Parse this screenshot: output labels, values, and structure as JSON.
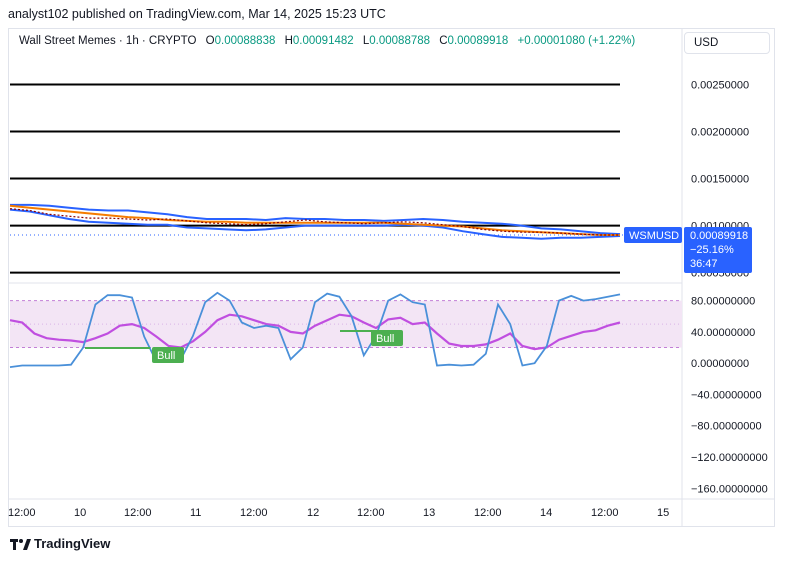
{
  "header": {
    "published": "analyst102 published on TradingView.com, Mar 14, 2025 15:23 UTC"
  },
  "legend": {
    "symbol": "Wall Street Memes · 1h · CRYPTO",
    "open_key": "O",
    "open": "0.00088838",
    "high_key": "H",
    "high": "0.00091482",
    "low_key": "L",
    "low": "0.00088788",
    "close_key": "C",
    "close": "0.00089918",
    "change": "+0.00001080 (+1.22%)"
  },
  "currency_button": "USD",
  "price_tag": {
    "ticker": "WSMUSD",
    "price": "0.00089918",
    "change": "−25.16%",
    "countdown": "36:47"
  },
  "signals": [
    {
      "label": "Bull"
    },
    {
      "label": "Bull"
    }
  ],
  "footer": {
    "brand": "TradingView"
  },
  "colors": {
    "bollinger": "#2962ff",
    "ma": "#f57c00",
    "stoch_k": "#4a90d9",
    "stoch_d": "#c04fe0",
    "bull": "#4caf50",
    "tag": "#2962ff",
    "stoch_band": "#f3e5f5"
  },
  "chart_data": [
    {
      "type": "line",
      "name": "price_panel",
      "yticks": [
        "0.00250000",
        "0.00200000",
        "0.00150000",
        "0.00100000",
        "0.00050000"
      ],
      "ylim": [
        0.00039,
        0.00276
      ],
      "xticks": [
        "12:00",
        "10",
        "12:00",
        "11",
        "12:00",
        "12",
        "12:00",
        "13",
        "12:00",
        "14",
        "12:00",
        "15"
      ],
      "horizontal_levels": [
        0.0025,
        0.002,
        0.0015,
        0.001,
        0.0005
      ],
      "series": [
        {
          "role": "price",
          "values": [
            0.00118,
            0.00116,
            0.00112,
            0.0011,
            0.00108,
            0.00108,
            0.00107,
            0.00106,
            0.00107,
            0.00105,
            0.00103,
            0.00102,
            0.00101,
            0.00102,
            0.00104,
            0.00106,
            0.00104,
            0.00103,
            0.00102,
            0.00103,
            0.00104,
            0.00103,
            0.00101,
            0.00099,
            0.00096,
            0.00094,
            0.00093,
            0.00093,
            0.00092,
            0.00091,
            0.0009,
            0.0009
          ]
        },
        {
          "role": "bollinger_upper",
          "values": [
            0.00122,
            0.00122,
            0.00121,
            0.00119,
            0.00117,
            0.00116,
            0.00116,
            0.00114,
            0.00112,
            0.00109,
            0.00107,
            0.00107,
            0.00107,
            0.00106,
            0.00108,
            0.00107,
            0.00107,
            0.00106,
            0.00106,
            0.00105,
            0.00106,
            0.00107,
            0.00106,
            0.00104,
            0.00103,
            0.00102,
            0.001,
            0.00097,
            0.00096,
            0.00094,
            0.00092,
            0.00091
          ]
        },
        {
          "role": "bollinger_lower",
          "values": [
            0.00117,
            0.00115,
            0.00111,
            0.00107,
            0.00104,
            0.00103,
            0.00102,
            0.00101,
            0.00101,
            0.00098,
            0.00097,
            0.00096,
            0.00095,
            0.00096,
            0.00098,
            0.001,
            0.001,
            0.001,
            0.001,
            0.001,
            0.00101,
            0.001,
            0.00098,
            0.00094,
            0.00091,
            0.00088,
            0.00087,
            0.00086,
            0.00087,
            0.00087,
            0.00088,
            0.00089
          ]
        },
        {
          "role": "moving_average",
          "values": [
            0.00121,
            0.00119,
            0.00117,
            0.00115,
            0.00113,
            0.00111,
            0.00109,
            0.00108,
            0.00106,
            0.00105,
            0.00104,
            0.00104,
            0.00103,
            0.00103,
            0.00103,
            0.00103,
            0.00103,
            0.00103,
            0.00103,
            0.00103,
            0.00102,
            0.00101,
            0.001,
            0.00099,
            0.00097,
            0.00095,
            0.00094,
            0.00093,
            0.00092,
            0.00091,
            0.0009,
            0.0009
          ]
        }
      ]
    },
    {
      "type": "line",
      "name": "stochastic_panel",
      "yticks": [
        "80.00000000",
        "40.00000000",
        "0.00000000",
        "−40.00000000",
        "−80.00000000",
        "−120.00000000",
        "−160.00000000"
      ],
      "ylim": [
        -175,
        100
      ],
      "band": [
        20,
        80
      ],
      "series": [
        {
          "role": "k",
          "values": [
            -5,
            -3,
            -3,
            -3,
            -3,
            -2,
            20,
            75,
            87,
            87,
            84,
            34,
            2,
            3,
            5,
            35,
            78,
            90,
            80,
            52,
            45,
            48,
            45,
            5,
            20,
            78,
            89,
            85,
            60,
            10,
            35,
            80,
            88,
            78,
            75,
            -3,
            -2,
            -3,
            -2,
            12,
            75,
            50,
            -3,
            0,
            22,
            80,
            86,
            80,
            82,
            85,
            88
          ]
        },
        {
          "role": "d",
          "values": [
            55,
            52,
            38,
            32,
            30,
            29,
            27,
            32,
            38,
            48,
            50,
            45,
            34,
            22,
            20,
            28,
            40,
            55,
            62,
            60,
            55,
            50,
            48,
            40,
            38,
            48,
            55,
            62,
            60,
            52,
            45,
            56,
            58,
            50,
            52,
            38,
            25,
            22,
            22,
            24,
            30,
            38,
            22,
            18,
            20,
            30,
            35,
            40,
            42,
            48,
            52
          ]
        }
      ]
    }
  ]
}
